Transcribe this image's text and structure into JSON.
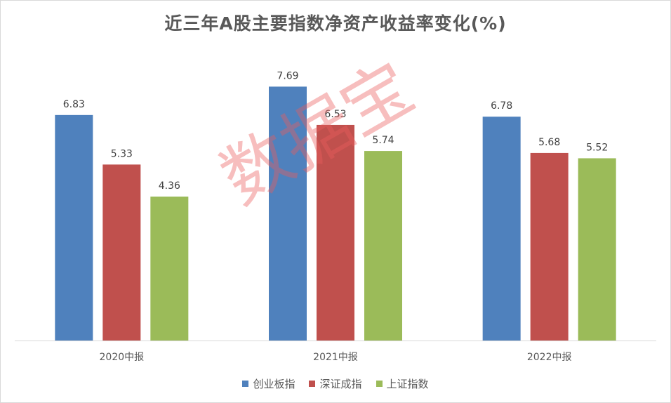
{
  "chart_data": {
    "type": "bar",
    "title": "近三年A股主要指数净资产收益率变化(%)",
    "categories": [
      "2020中报",
      "2021中报",
      "2022中报"
    ],
    "series": [
      {
        "name": "创业板指",
        "color": "#4f81bd",
        "values": [
          6.83,
          7.69,
          6.78
        ]
      },
      {
        "name": "深证成指",
        "color": "#c0504d",
        "values": [
          5.33,
          6.53,
          5.68
        ]
      },
      {
        "name": "上证指数",
        "color": "#9bbb59",
        "values": [
          4.36,
          5.74,
          5.52
        ]
      }
    ],
    "ylim": [
      0,
      8.4
    ],
    "grid": false,
    "legend_position": "bottom"
  },
  "watermark_text": "数据宝"
}
